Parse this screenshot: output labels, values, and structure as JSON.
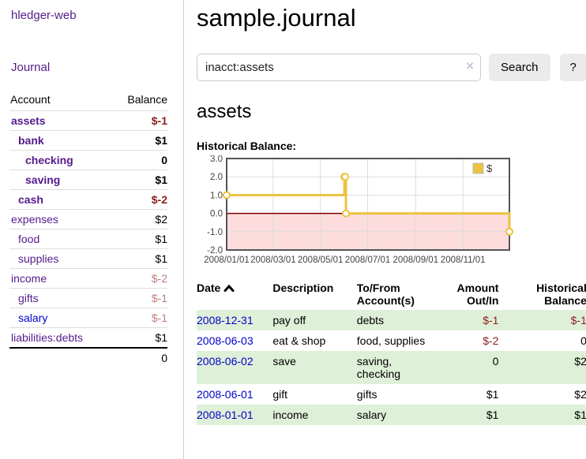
{
  "app": {
    "title": "hledger-web",
    "nav_journal": "Journal"
  },
  "sidebar": {
    "columns": {
      "account": "Account",
      "balance": "Balance"
    },
    "accounts": [
      {
        "name": "assets",
        "depth": 1,
        "balance": "$-1",
        "bold": true,
        "neg": "strong",
        "link": "purple"
      },
      {
        "name": "bank",
        "depth": 2,
        "balance": "$1",
        "bold": true,
        "neg": "none",
        "link": "purple"
      },
      {
        "name": "checking",
        "depth": 3,
        "balance": "0",
        "bold": true,
        "neg": "none",
        "link": "purple"
      },
      {
        "name": "saving",
        "depth": 3,
        "balance": "$1",
        "bold": true,
        "neg": "none",
        "link": "purple"
      },
      {
        "name": "cash",
        "depth": 2,
        "balance": "$-2",
        "bold": true,
        "neg": "strong",
        "link": "purple"
      },
      {
        "name": "expenses",
        "depth": 1,
        "balance": "$2",
        "bold": false,
        "neg": "none",
        "link": "purple"
      },
      {
        "name": "food",
        "depth": 2,
        "balance": "$1",
        "bold": false,
        "neg": "none",
        "link": "purple"
      },
      {
        "name": "supplies",
        "depth": 2,
        "balance": "$1",
        "bold": false,
        "neg": "none",
        "link": "purple"
      },
      {
        "name": "income",
        "depth": 1,
        "balance": "$-2",
        "bold": false,
        "neg": "light",
        "link": "purple"
      },
      {
        "name": "gifts",
        "depth": 2,
        "balance": "$-1",
        "bold": false,
        "neg": "light",
        "link": "purple"
      },
      {
        "name": "salary",
        "depth": 2,
        "balance": "$-1",
        "bold": false,
        "neg": "light",
        "link": "blue"
      },
      {
        "name": "liabilities:debts",
        "depth": 1,
        "balance": "$1",
        "bold": false,
        "neg": "none",
        "link": "purple"
      }
    ],
    "total": "0"
  },
  "header": {
    "title": "sample.journal"
  },
  "search": {
    "value": "inacct:assets",
    "clear_glyph": "×",
    "button_label": "Search",
    "help_label": "?"
  },
  "account_page": {
    "title": "assets",
    "chart_label": "Historical Balance:"
  },
  "chart_data": {
    "type": "line",
    "step": true,
    "title": "Historical Balance",
    "series": [
      {
        "name": "$",
        "color": "#edc240",
        "points": [
          [
            "2008-01-01",
            1
          ],
          [
            "2008-06-01",
            2
          ],
          [
            "2008-06-02",
            2
          ],
          [
            "2008-06-03",
            0
          ],
          [
            "2008-12-31",
            -1
          ]
        ]
      }
    ],
    "x_range": [
      "2008-01-01",
      "2008-12-31"
    ],
    "ylim": [
      -2,
      3
    ],
    "yticks": [
      3.0,
      2.0,
      1.0,
      0.0,
      -1.0,
      -2.0
    ],
    "xticks": [
      {
        "date": "2008-01-01",
        "label": "2008/01/01"
      },
      {
        "date": "2008-03-01",
        "label": "2008/03/01"
      },
      {
        "date": "2008-05-01",
        "label": "2008/05/01"
      },
      {
        "date": "2008-07-01",
        "label": "2008/07/01"
      },
      {
        "date": "2008-09-01",
        "label": "2008/09/01"
      },
      {
        "date": "2008-11-01",
        "label": "2008/11/01"
      }
    ],
    "legend": {
      "label": "$",
      "position": "top-right"
    },
    "grid": true,
    "negative_region_color": "#fcdcdc",
    "zero_line_color": "#800000",
    "grid_color": "#dddddd",
    "border_color": "#545454"
  },
  "register": {
    "columns": [
      "Date",
      "Description",
      "To/From Account(s)",
      "Amount Out/In",
      "Historical Balance"
    ],
    "rows": [
      {
        "date": "2008-12-31",
        "description": "pay off",
        "accounts": "debts",
        "amount": "$-1",
        "balance": "$-1",
        "amount_neg": true,
        "balance_neg": true
      },
      {
        "date": "2008-06-03",
        "description": "eat & shop",
        "accounts": "food, supplies",
        "amount": "$-2",
        "balance": "0",
        "amount_neg": true,
        "balance_neg": false
      },
      {
        "date": "2008-06-02",
        "description": "save",
        "accounts": "saving, checking",
        "amount": "0",
        "balance": "$2",
        "amount_neg": false,
        "balance_neg": false
      },
      {
        "date": "2008-06-01",
        "description": "gift",
        "accounts": "gifts",
        "amount": "$1",
        "balance": "$2",
        "amount_neg": false,
        "balance_neg": false
      },
      {
        "date": "2008-01-01",
        "description": "income",
        "accounts": "salary",
        "amount": "$1",
        "balance": "$1",
        "amount_neg": false,
        "balance_neg": false
      }
    ]
  }
}
